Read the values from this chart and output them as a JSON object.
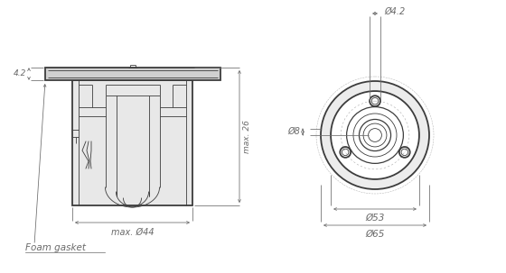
{
  "bg_color": "#ffffff",
  "line_color": "#3c3c3c",
  "dim_color": "#6a6a6a",
  "light_gray": "#d0d0d0",
  "fill_gray": "#e8e8e8",
  "dark_fill": "#b0b0b0",
  "annotations": {
    "dim_42_top_label": "Ø4.2",
    "dim_8_label": "Ø8",
    "dim_26_label": "max. 26",
    "dim_44_label": "max. Ø44",
    "dim_42_side_label": "4.2",
    "dim_53_label": "Ø53",
    "dim_65_label": "Ø65",
    "foam_label": "Foam gasket"
  }
}
